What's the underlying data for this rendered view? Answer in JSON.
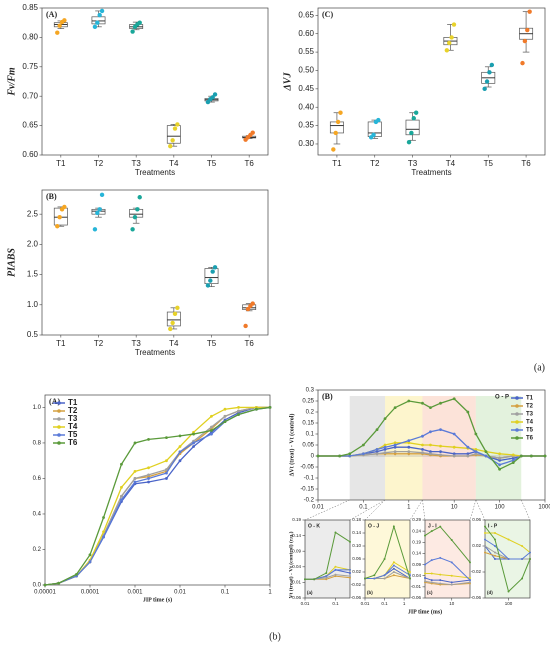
{
  "chart_data": [
    {
      "type": "box",
      "title": "(A)",
      "ylabel": "Fv/Fm",
      "xlabel": "Treatments",
      "categories": [
        "T1",
        "T2",
        "T3",
        "T4",
        "T5",
        "T6"
      ],
      "ylim": [
        0.6,
        0.85
      ],
      "yticks": [
        {
          "value": 0.6,
          "label": "0.60"
        },
        {
          "value": 0.65,
          "label": "0.65"
        },
        {
          "value": 0.7,
          "label": "0.70"
        },
        {
          "value": 0.75,
          "label": "0.75"
        },
        {
          "value": 0.8,
          "label": "0.80"
        },
        {
          "value": 0.85,
          "label": "0.85"
        }
      ],
      "point_colors": [
        "#f5a623",
        "#27b5d8",
        "#1aa79a",
        "#e8d22a",
        "#1a9fb0",
        "#f07a2a"
      ],
      "boxes": [
        {
          "min": 0.815,
          "q1": 0.818,
          "median": 0.822,
          "q3": 0.825,
          "max": 0.828,
          "points": [
            0.808,
            0.82,
            0.826,
            0.829
          ]
        },
        {
          "min": 0.818,
          "q1": 0.823,
          "median": 0.828,
          "q3": 0.835,
          "max": 0.845,
          "points": [
            0.818,
            0.825,
            0.838,
            0.845
          ]
        },
        {
          "min": 0.813,
          "q1": 0.815,
          "median": 0.818,
          "q3": 0.822,
          "max": 0.826,
          "points": [
            0.81,
            0.818,
            0.822,
            0.825
          ]
        },
        {
          "min": 0.615,
          "q1": 0.62,
          "median": 0.632,
          "q3": 0.65,
          "max": 0.652,
          "points": [
            0.615,
            0.625,
            0.645,
            0.652
          ]
        },
        {
          "min": 0.69,
          "q1": 0.692,
          "median": 0.694,
          "q3": 0.696,
          "max": 0.7,
          "points": [
            0.69,
            0.695,
            0.698,
            0.703
          ]
        },
        {
          "min": 0.628,
          "q1": 0.629,
          "median": 0.63,
          "q3": 0.632,
          "max": 0.633,
          "points": [
            0.626,
            0.63,
            0.634,
            0.638
          ]
        }
      ]
    },
    {
      "type": "box",
      "title": "(C)",
      "ylabel": "ΔVJ",
      "xlabel": "Treatments",
      "categories": [
        "T1",
        "T2",
        "T3",
        "T4",
        "T5",
        "T6"
      ],
      "ylim": [
        0.27,
        0.67
      ],
      "yticks": [
        {
          "value": 0.3,
          "label": "0.30"
        },
        0.35,
        {
          "value": 0.4,
          "label": "0.40"
        },
        0.45,
        {
          "value": 0.5,
          "label": "0.50"
        },
        0.55,
        {
          "value": 0.6,
          "label": "0.60"
        },
        0.65
      ],
      "point_colors": [
        "#f5a623",
        "#27b5d8",
        "#1aa79a",
        "#e8d22a",
        "#1a9fb0",
        "#f07a2a"
      ],
      "boxes": [
        {
          "min": 0.3,
          "q1": 0.33,
          "median": 0.35,
          "q3": 0.36,
          "max": 0.385,
          "points": [
            0.285,
            0.33,
            0.36,
            0.385
          ]
        },
        {
          "min": 0.315,
          "q1": 0.32,
          "median": 0.33,
          "q3": 0.36,
          "max": 0.365,
          "points": [
            0.318,
            0.325,
            0.36,
            0.365
          ]
        },
        {
          "min": 0.31,
          "q1": 0.325,
          "median": 0.34,
          "q3": 0.365,
          "max": 0.385,
          "points": [
            0.305,
            0.33,
            0.37,
            0.385
          ]
        },
        {
          "min": 0.555,
          "q1": 0.57,
          "median": 0.58,
          "q3": 0.59,
          "max": 0.625,
          "points": [
            0.555,
            0.575,
            0.59,
            0.625
          ]
        },
        {
          "min": 0.455,
          "q1": 0.465,
          "median": 0.48,
          "q3": 0.495,
          "max": 0.51,
          "points": [
            0.45,
            0.47,
            0.495,
            0.515
          ]
        },
        {
          "min": 0.55,
          "q1": 0.585,
          "median": 0.6,
          "q3": 0.615,
          "max": 0.66,
          "points": [
            0.52,
            0.58,
            0.61,
            0.66
          ]
        }
      ]
    },
    {
      "type": "box",
      "title": "(B)",
      "ylabel": "PIABS",
      "xlabel": "Treatments",
      "categories": [
        "T1",
        "T2",
        "T3",
        "T4",
        "T5",
        "T6"
      ],
      "ylim": [
        0.5,
        2.9
      ],
      "yticks": [
        0.5,
        {
          "value": 1,
          "label": "1.0"
        },
        1.5,
        {
          "value": 2,
          "label": "2.0"
        },
        2.5
      ],
      "point_colors": [
        "#f5a623",
        "#27b5d8",
        "#1aa79a",
        "#e8d22a",
        "#1a9fb0",
        "#f07a2a"
      ],
      "boxes": [
        {
          "min": 2.3,
          "q1": 2.32,
          "median": 2.45,
          "q3": 2.6,
          "max": 2.62,
          "points": [
            2.3,
            2.45,
            2.58,
            2.62
          ]
        },
        {
          "min": 2.45,
          "q1": 2.5,
          "median": 2.55,
          "q3": 2.58,
          "max": 2.6,
          "points": [
            2.25,
            2.52,
            2.58,
            2.82
          ]
        },
        {
          "min": 2.35,
          "q1": 2.45,
          "median": 2.5,
          "q3": 2.58,
          "max": 2.6,
          "points": [
            2.25,
            2.45,
            2.58,
            2.78
          ]
        },
        {
          "min": 0.6,
          "q1": 0.65,
          "median": 0.75,
          "q3": 0.88,
          "max": 0.95,
          "points": [
            0.6,
            0.7,
            0.85,
            0.95
          ]
        },
        {
          "min": 1.3,
          "q1": 1.35,
          "median": 1.45,
          "q3": 1.6,
          "max": 1.62,
          "points": [
            1.32,
            1.4,
            1.55,
            1.62
          ]
        },
        {
          "min": 0.9,
          "q1": 0.92,
          "median": 0.95,
          "q3": 1.0,
          "max": 1.02,
          "points": [
            0.65,
            0.93,
            0.98,
            1.02
          ]
        }
      ]
    },
    {
      "type": "line",
      "title": "(A)",
      "xlabel": "JIP time (s)",
      "xlog": true,
      "legend": "upper left",
      "xlim": [
        1e-05,
        1
      ],
      "xticks": [
        1e-05,
        0.0001,
        0.001,
        0.01,
        0.1,
        1
      ],
      "ylim": [
        0,
        1.07
      ],
      "yticks": [
        {
          "value": 0,
          "label": "0.0"
        },
        0.2,
        0.4,
        0.6,
        0.8,
        {
          "value": 1,
          "label": "1.0"
        }
      ],
      "x": [
        1e-05,
        2e-05,
        5e-05,
        0.0001,
        0.0002,
        0.0005,
        0.001,
        0.002,
        0.005,
        0.01,
        0.02,
        0.05,
        0.1,
        0.2,
        0.5,
        1
      ],
      "series": [
        {
          "name": "T1",
          "color": "#4a64c8",
          "values": [
            0,
            0.01,
            0.05,
            0.13,
            0.27,
            0.47,
            0.57,
            0.58,
            0.6,
            0.7,
            0.78,
            0.86,
            0.93,
            0.97,
            1,
            1
          ]
        },
        {
          "name": "T2",
          "color": "#d4a040",
          "values": [
            0,
            0.01,
            0.05,
            0.13,
            0.28,
            0.5,
            0.6,
            0.61,
            0.64,
            0.74,
            0.8,
            0.88,
            0.95,
            0.98,
            1,
            1
          ]
        },
        {
          "name": "T3",
          "color": "#a0a0a0",
          "values": [
            0,
            0.01,
            0.05,
            0.13,
            0.28,
            0.5,
            0.6,
            0.62,
            0.65,
            0.75,
            0.81,
            0.89,
            0.95,
            0.98,
            1,
            1
          ]
        },
        {
          "name": "T4",
          "color": "#e0d020",
          "values": [
            0,
            0.01,
            0.05,
            0.14,
            0.3,
            0.55,
            0.64,
            0.66,
            0.7,
            0.78,
            0.86,
            0.95,
            0.99,
            1,
            1,
            1
          ]
        },
        {
          "name": "T5",
          "color": "#5a7ad8",
          "values": [
            0,
            0.01,
            0.05,
            0.13,
            0.27,
            0.48,
            0.58,
            0.6,
            0.63,
            0.75,
            0.8,
            0.85,
            0.92,
            0.96,
            0.99,
            1
          ]
        },
        {
          "name": "T6",
          "color": "#5a9a3a",
          "values": [
            0,
            0.01,
            0.06,
            0.17,
            0.38,
            0.68,
            0.8,
            0.82,
            0.83,
            0.84,
            0.85,
            0.87,
            0.92,
            0.96,
            0.99,
            1
          ]
        }
      ]
    },
    {
      "type": "line",
      "title": "(B)",
      "ylabel": "ΔVt (treat) - Vt (control)",
      "annotation": "O - P",
      "xlog": true,
      "legend": "upper right",
      "bands": true,
      "xlim": [
        0.01,
        1000
      ],
      "xticks": [
        0.01,
        0.1,
        1,
        10,
        100,
        1000
      ],
      "ylim": [
        -0.2,
        0.3
      ],
      "yticks": [
        -0.2,
        -0.15,
        -0.1,
        -0.05,
        0,
        0.05,
        0.1,
        0.15,
        0.2,
        0.25,
        0.3
      ],
      "x": [
        0.01,
        0.03,
        0.05,
        0.1,
        0.2,
        0.3,
        0.5,
        1,
        2,
        3,
        5,
        10,
        20,
        30,
        50,
        100,
        200,
        300,
        500,
        1000
      ],
      "series": [
        {
          "name": "T1",
          "color": "#4a64c8",
          "values": [
            0,
            0,
            0,
            0.01,
            0.02,
            0.03,
            0.04,
            0.04,
            0.03,
            0.02,
            0.02,
            0.01,
            0.01,
            0.02,
            0,
            -0.02,
            -0.01,
            0,
            0,
            0
          ]
        },
        {
          "name": "T2",
          "color": "#d4a040",
          "values": [
            0,
            0,
            0,
            0.005,
            0.01,
            0.01,
            0.01,
            0.01,
            0.01,
            0.005,
            0,
            0,
            0,
            0.005,
            0,
            -0.01,
            0,
            0,
            0,
            0
          ]
        },
        {
          "name": "T3",
          "color": "#a0a0a0",
          "values": [
            0,
            0,
            0,
            0.005,
            0.01,
            0.015,
            0.02,
            0.02,
            0.015,
            0.01,
            0.005,
            0,
            0,
            0.01,
            0,
            -0.01,
            0,
            0,
            0,
            0
          ]
        },
        {
          "name": "T4",
          "color": "#e0d020",
          "values": [
            0,
            0,
            0,
            0.01,
            0.03,
            0.05,
            0.06,
            0.06,
            0.05,
            0.05,
            0.045,
            0.04,
            0.035,
            0.03,
            0.02,
            0.01,
            0.005,
            0,
            0,
            0
          ]
        },
        {
          "name": "T5",
          "color": "#5a7ad8",
          "values": [
            0,
            0,
            0,
            0.01,
            0.03,
            0.04,
            0.05,
            0.07,
            0.09,
            0.11,
            0.12,
            0.1,
            0.04,
            0.02,
            0,
            -0.04,
            -0.02,
            0,
            0,
            0
          ]
        },
        {
          "name": "T6",
          "color": "#5a9a3a",
          "values": [
            0,
            0,
            0.01,
            0.05,
            0.12,
            0.17,
            0.22,
            0.25,
            0.24,
            0.22,
            0.24,
            0.26,
            0.2,
            0.1,
            0.02,
            -0.06,
            -0.03,
            0,
            0,
            0
          ]
        }
      ]
    }
  ],
  "insets": [
    {
      "label": "O - K",
      "tag": "(a)",
      "range": [
        0.05,
        0.3
      ],
      "color": "#e0e0e0",
      "xlim": [
        0.01,
        0.3
      ],
      "xticks": [
        0.01,
        0.1
      ],
      "ylim": [
        -0.06,
        0.19
      ],
      "yticks": [
        -0.06,
        -0.01,
        0.04,
        0.09,
        0.14,
        0.19
      ],
      "x": [
        0.01,
        0.02,
        0.05,
        0.1,
        0.3
      ],
      "values": [
        [
          0,
          0,
          0.01,
          0.03,
          0.02
        ],
        [
          0,
          0,
          0,
          0.01,
          0.005
        ],
        [
          0,
          0,
          0.005,
          0.015,
          0.01
        ],
        [
          0,
          0,
          0.01,
          0.04,
          0.03
        ],
        [
          0,
          0,
          0.01,
          0.03,
          0.03
        ],
        [
          0,
          0,
          0.02,
          0.15,
          0.12
        ]
      ]
    },
    {
      "label": "O - J",
      "tag": "(b)",
      "range": [
        0.3,
        2
      ],
      "color": "#fdf3c0",
      "xlim": [
        0.01,
        2
      ],
      "xticks": [
        0.01,
        0.1,
        1
      ],
      "ylim": [
        -0.06,
        0.18
      ],
      "yticks": [
        -0.06,
        -0.02,
        0.02,
        0.06,
        {
          "value": 0.1,
          "label": "0.10"
        },
        0.14,
        0.18
      ],
      "x": [
        0.01,
        0.03,
        0.1,
        0.3,
        2
      ],
      "values": [
        [
          0,
          0,
          0.01,
          0.03,
          0
        ],
        [
          0,
          0,
          0,
          0.01,
          0
        ],
        [
          0,
          0,
          0,
          0.02,
          0
        ],
        [
          0,
          0,
          0.01,
          0.05,
          0.02
        ],
        [
          0,
          0,
          0.01,
          0.04,
          0.01
        ],
        [
          0,
          0.01,
          0.06,
          0.16,
          0
        ]
      ]
    },
    {
      "label": "J - I",
      "tag": "(c)",
      "range": [
        2,
        30
      ],
      "color": "#fbdcd0",
      "xlim": [
        2,
        30
      ],
      "xticks": [
        10
      ],
      "ylim": [
        -0.06,
        0.29
      ],
      "yticks": [
        -0.06,
        -0.01,
        0.04,
        0.09,
        0.14,
        0.19,
        0.24,
        0.29
      ],
      "x": [
        2,
        3,
        5,
        10,
        30
      ],
      "values": [
        [
          0.03,
          0.02,
          0.02,
          0.01,
          0.02
        ],
        [
          0.01,
          0.005,
          0,
          0,
          0.005
        ],
        [
          0.015,
          0.01,
          0.005,
          0,
          0.01
        ],
        [
          0.05,
          0.05,
          0.045,
          0.04,
          0.03
        ],
        [
          0.09,
          0.11,
          0.12,
          0.1,
          0.02
        ],
        [
          0.22,
          0.24,
          0.26,
          0.2,
          0.1
        ]
      ]
    },
    {
      "label": "I - P",
      "tag": "(d)",
      "range": [
        30,
        300
      ],
      "color": "#dcefd4",
      "xlim": [
        30,
        300
      ],
      "xticks": [
        100
      ],
      "ylim": [
        -0.06,
        0.06
      ],
      "yticks": [
        -0.06,
        -0.02,
        0.02,
        0.06
      ],
      "x": [
        30,
        50,
        100,
        200,
        300
      ],
      "values": [
        [
          0.02,
          0,
          0,
          0,
          0
        ],
        [
          0.01,
          0.005,
          0,
          0,
          0
        ],
        [
          0.02,
          0.01,
          0,
          0,
          0
        ],
        [
          0.04,
          0.04,
          0.03,
          0.02,
          0.01
        ],
        [
          0.03,
          0.02,
          0,
          0,
          0.01
        ],
        [
          0.05,
          0.03,
          -0.05,
          -0.03,
          0
        ]
      ]
    }
  ],
  "inset_ylabel": "Vt (treat) - Vt (control) (r.u.)",
  "inset_xlabel": "JIP time (ms)",
  "panel_labels": [
    "(a)",
    "(b)"
  ]
}
